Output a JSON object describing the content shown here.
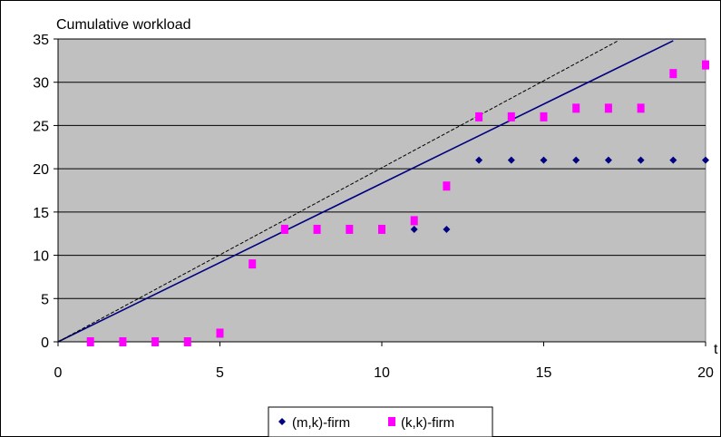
{
  "chart_data": {
    "type": "scatter",
    "title": "Cumulative workload",
    "xlabel": "t",
    "ylabel": "",
    "xlim": [
      0,
      20
    ],
    "ylim": [
      0,
      35
    ],
    "x_ticks": [
      0,
      5,
      10,
      15,
      20
    ],
    "y_ticks": [
      0,
      5,
      10,
      15,
      20,
      25,
      30,
      35
    ],
    "grid": "horizontal",
    "plot_background": "#c0c0c0",
    "legend_position": "bottom",
    "series": [
      {
        "name": "(m,k)-firm",
        "marker": "diamond",
        "color": "#000080",
        "x": [
          1,
          2,
          3,
          4,
          5,
          6,
          7,
          8,
          9,
          10,
          11,
          12,
          13,
          14,
          15,
          16,
          17,
          18,
          19,
          20
        ],
        "y": [
          0,
          0,
          0,
          0,
          1,
          9,
          13,
          13,
          13,
          13,
          13,
          13,
          21,
          21,
          21,
          21,
          21,
          21,
          21,
          21
        ]
      },
      {
        "name": "(k,k)-firm",
        "marker": "square",
        "color": "#ff00ff",
        "x": [
          1,
          2,
          3,
          4,
          5,
          6,
          7,
          8,
          9,
          10,
          11,
          12,
          13,
          14,
          15,
          16,
          17,
          18,
          19,
          20
        ],
        "y": [
          0,
          0,
          0,
          0,
          1,
          9,
          13,
          13,
          13,
          13,
          14,
          18,
          26,
          26,
          26,
          27,
          27,
          27,
          31,
          32
        ]
      }
    ],
    "lines": [
      {
        "style": "solid",
        "color": "#000080",
        "from": [
          0,
          0
        ],
        "to": [
          19,
          34.8
        ]
      },
      {
        "style": "dashed",
        "color": "#000000",
        "from": [
          0,
          0
        ],
        "to": [
          17.3,
          34.8
        ]
      }
    ]
  }
}
